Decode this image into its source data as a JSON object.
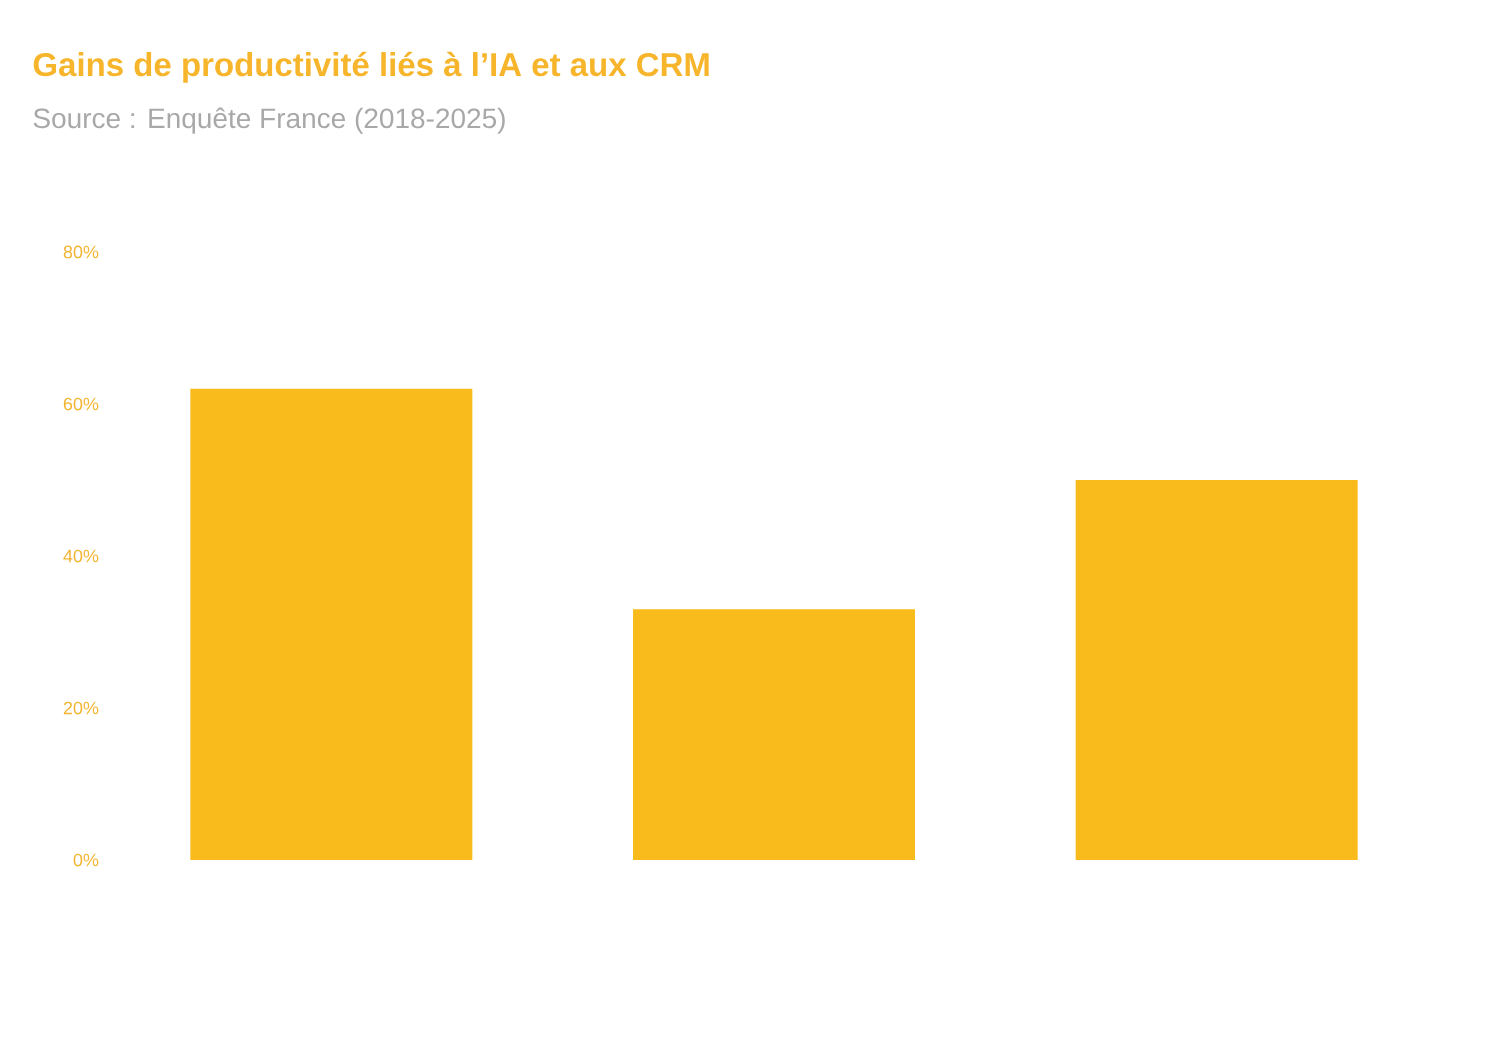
{
  "chart_data": {
    "type": "bar",
    "title": "Gains de productivité liés à l’IA et aux CRM",
    "subtitle": "Source : Enquête France (2018-2025)",
    "categories": [
      null,
      null,
      null
    ],
    "values": [
      62,
      33,
      50
    ],
    "color": "#f8bb1b",
    "ylim": [
      0,
      80
    ],
    "yticks": [
      {
        "value": 0,
        "label": "0%"
      },
      {
        "value": 20,
        "label": "20%"
      },
      {
        "value": 40,
        "label": "40%"
      },
      {
        "value": 60,
        "label": "60%"
      },
      {
        "value": 80,
        "label": "80%"
      }
    ]
  }
}
